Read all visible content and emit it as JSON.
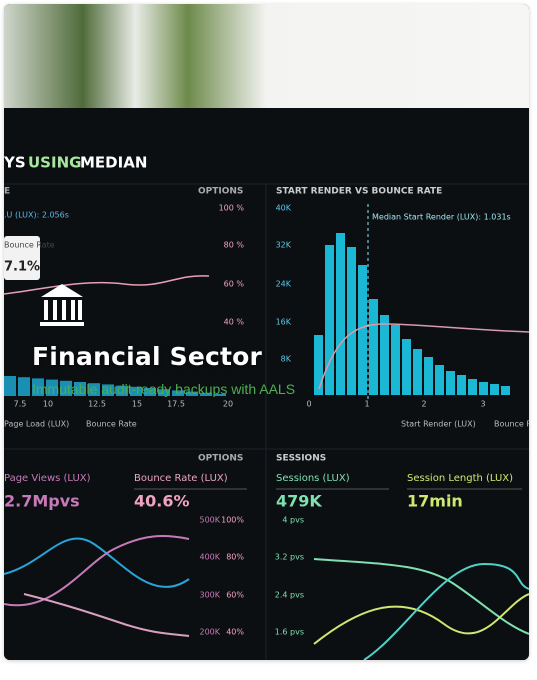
{
  "card": {
    "title": "Financial Sector",
    "subtitle": "Immutable audit-ready backups with AALS"
  },
  "photo": {
    "texts": [
      "YS",
      "USING",
      "MEDIAN",
      "E",
      "OPTIONS",
      "START RENDER VS BOUNCE RATE",
      "Median Start Render (LUX): 1.031s",
      ".U (LUX): 2.056s",
      "100 %",
      "80 %",
      "60 %",
      "40 %",
      "40K",
      "32K",
      "24K",
      "16K",
      "8K",
      "7.5",
      "10",
      "12.5",
      "15",
      "17.5",
      "20",
      "0",
      "1",
      "2",
      "3",
      "Page Load (LUX)",
      "Bounce Rate",
      "Start Render (LUX)",
      "Bounce Rate",
      "OPTIONS",
      "SESSIONS",
      "Page Views (LUX)",
      "Bounce Rate (LUX)",
      "Sessions (LUX)",
      "Session Length (LUX)",
      "2.7Mpvs",
      "40.6%",
      "479K",
      "17min",
      "500K",
      "400K",
      "300K",
      "200K",
      "100%",
      "80%",
      "60%",
      "40%",
      "4 pvs",
      "3.2 pvs",
      "2.4 pvs",
      "1.6 pvs",
      "Bounce Rate",
      "7.1%"
    ]
  }
}
